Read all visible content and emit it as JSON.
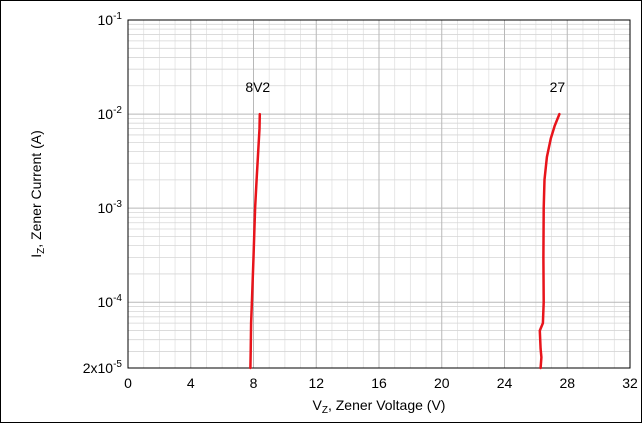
{
  "chart_data": {
    "type": "line",
    "title": "",
    "xlabel_main": "V",
    "xlabel_sub": "Z",
    "xlabel_rest": ", Zener Voltage (V)",
    "ylabel_main": "I",
    "ylabel_sub": "Z",
    "ylabel_rest": ", Zener Current (A)",
    "xlim": [
      0,
      32
    ],
    "ylim": [
      2e-05,
      0.1
    ],
    "yscale": "log",
    "grid": true,
    "x_ticks": [
      {
        "value": 0,
        "label": "0"
      },
      {
        "value": 4,
        "label": "4"
      },
      {
        "value": 8,
        "label": "8"
      },
      {
        "value": 12,
        "label": "12"
      },
      {
        "value": 16,
        "label": "16"
      },
      {
        "value": 20,
        "label": "20"
      },
      {
        "value": 24,
        "label": "24"
      },
      {
        "value": 28,
        "label": "28"
      },
      {
        "value": 32,
        "label": "32"
      }
    ],
    "y_ticks": [
      {
        "value": 0.1,
        "base": "10",
        "exp": "-1",
        "prefix": ""
      },
      {
        "value": 0.01,
        "base": "10",
        "exp": "-2",
        "prefix": ""
      },
      {
        "value": 0.001,
        "base": "10",
        "exp": "-3",
        "prefix": ""
      },
      {
        "value": 0.0001,
        "base": "10",
        "exp": "-4",
        "prefix": ""
      },
      {
        "value": 2e-05,
        "base": "10",
        "exp": "-5",
        "prefix": "2x"
      }
    ],
    "series": [
      {
        "name": "8V2",
        "color": "#e8141b",
        "x": [
          7.8,
          7.82,
          7.85,
          7.9,
          8.0,
          8.1,
          8.2,
          8.3,
          8.38,
          8.4
        ],
        "y": [
          2e-05,
          3e-05,
          6e-05,
          0.0001,
          0.0003,
          0.001,
          0.002,
          0.004,
          0.007,
          0.01
        ]
      },
      {
        "name": "27",
        "color": "#e8141b",
        "x": [
          26.3,
          26.35,
          26.3,
          26.25,
          26.45,
          26.5,
          26.48,
          26.5,
          26.55,
          26.7,
          26.95,
          27.2,
          27.5
        ],
        "y": [
          2e-05,
          2.6e-05,
          3.2e-05,
          5e-05,
          6e-05,
          0.0001,
          0.0003,
          0.001,
          0.002,
          0.0035,
          0.0055,
          0.0075,
          0.01
        ]
      }
    ]
  }
}
